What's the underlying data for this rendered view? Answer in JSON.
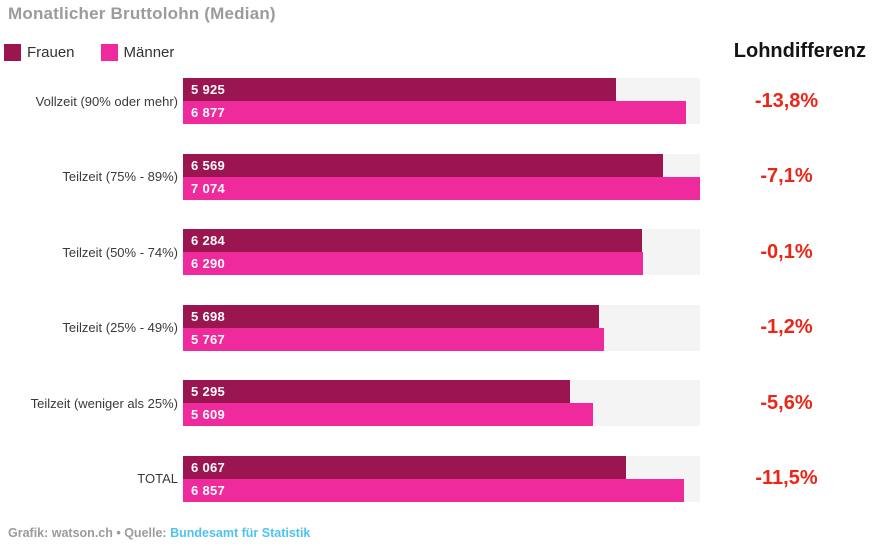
{
  "title": "Monatlicher Bruttolohn (Median)",
  "diff_header": "Lohndifferenz",
  "footer": {
    "prefix": "Grafik: watson.ch • Quelle: ",
    "link": "Bundesamt für Statistik"
  },
  "colors": {
    "frauen_bar": "#9B1651",
    "maenner_bar": "#EF2A9C",
    "track": "#F4F4F4",
    "diff_text": "#EA2617",
    "link": "#4FC3F0",
    "title_text": "#9B9B9B",
    "label_text": "#3A3A3A",
    "header_text": "#141414",
    "footer_text": "#9B9B9B"
  },
  "chart_data": {
    "type": "bar",
    "orientation": "horizontal",
    "title": "Monatlicher Bruttolohn (Median)",
    "categories": [
      "Vollzeit (90% oder mehr)",
      "Teilzeit (75% - 89%)",
      "Teilzeit (50% - 74%)",
      "Teilzeit (25% - 49%)",
      "Teilzeit (weniger als 25%)",
      "TOTAL"
    ],
    "series": [
      {
        "name": "Frauen",
        "values": [
          5925,
          6569,
          6284,
          5698,
          5295,
          6067
        ],
        "labels": [
          "5 925",
          "6 569",
          "6 284",
          "5 698",
          "5 295",
          "6 067"
        ]
      },
      {
        "name": "Männer",
        "values": [
          6877,
          7074,
          6290,
          5767,
          5609,
          6857
        ],
        "labels": [
          "6 877",
          "7 074",
          "6 290",
          "5 767",
          "5 609",
          "6 857"
        ]
      }
    ],
    "diffs_percent": [
      -13.8,
      -7.1,
      -0.1,
      -1.2,
      -5.6,
      -11.5
    ],
    "diff_labels": [
      "-13,8%",
      "-7,1%",
      "-0,1%",
      "-1,2%",
      "-5,6%",
      "-11,5%"
    ],
    "xlim": [
      0,
      7074
    ],
    "grid": false,
    "legend_position": "top-left",
    "value_labels_inside_bars": true
  }
}
